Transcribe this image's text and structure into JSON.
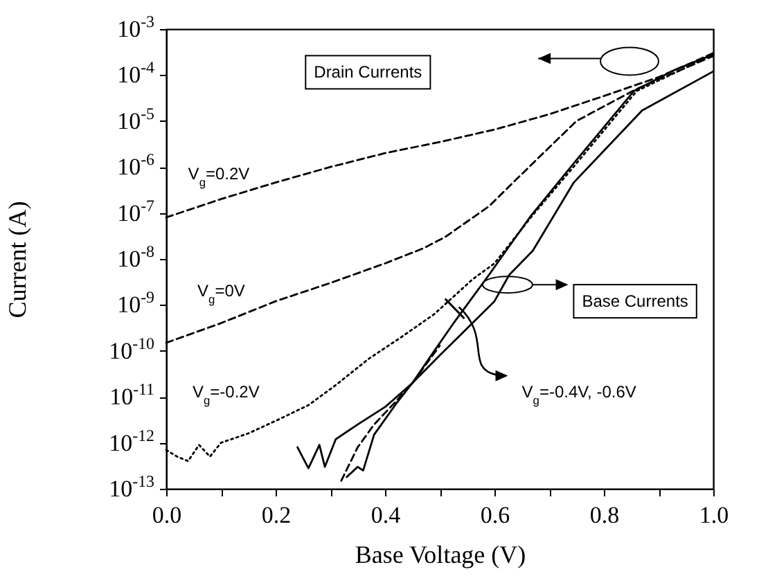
{
  "chart_data": {
    "type": "line",
    "xlabel": "Base Voltage (V)",
    "ylabel": "Current (A)",
    "xlim": [
      0,
      1
    ],
    "xticks": [
      {
        "value": 0,
        "label": "0.0"
      },
      {
        "value": 0.1,
        "label": null
      },
      {
        "value": 0.2,
        "label": "0.2"
      },
      {
        "value": 0.3,
        "label": null
      },
      {
        "value": 0.4,
        "label": "0.4"
      },
      {
        "value": 0.5,
        "label": null
      },
      {
        "value": 0.6,
        "label": "0.6"
      },
      {
        "value": 0.7,
        "label": null
      },
      {
        "value": 0.8,
        "label": "0.8"
      },
      {
        "value": 0.9,
        "label": null
      },
      {
        "value": 1,
        "label": "1.0"
      }
    ],
    "ylim": [
      1e-13,
      0.001
    ],
    "log": true,
    "yticks": [
      {
        "value": 1e-13,
        "label": "10$^{-13}$"
      },
      {
        "value": 1e-12,
        "label": "10$^{-12}$"
      },
      {
        "value": 1e-11,
        "label": "10$^{-11}$"
      },
      {
        "value": 1e-10,
        "label": "10$^{-10}$"
      },
      {
        "value": 1e-09,
        "label": "10$^{-9}$"
      },
      {
        "value": 1e-08,
        "label": "10$^{-8}$"
      },
      {
        "value": 1e-07,
        "label": "10$^{-7}$"
      },
      {
        "value": 1e-06,
        "label": "10$^{-6}$"
      },
      {
        "value": 1e-05,
        "label": "10$^{-5}$"
      },
      {
        "value": 0.0001,
        "label": "10$^{-4}$"
      },
      {
        "value": 0.001,
        "label": "10$^{-3}$"
      }
    ],
    "series": [
      {
        "color": "#000000",
        "line_style": "dashed",
        "x": [
          0,
          0.1,
          0.2,
          0.3,
          0.4,
          0.5,
          0.6,
          0.7,
          0.8,
          0.9,
          1.0
        ],
        "values": [
          8e-08,
          2e-07,
          4.6e-07,
          1e-06,
          2e-06,
          3.5e-06,
          6.5e-06,
          1.4e-05,
          3.5e-05,
          9e-05,
          0.0003
        ]
      },
      {
        "color": "#000000",
        "line_style": "dashed",
        "x": [
          0,
          0.1,
          0.2,
          0.3,
          0.4,
          0.47,
          0.51,
          0.59,
          0.67,
          0.75,
          0.86,
          1.0
        ],
        "values": [
          1.5e-10,
          4e-10,
          1.2e-09,
          3e-09,
          8e-09,
          1.7e-08,
          3e-08,
          1.4e-07,
          1.2e-06,
          1e-05,
          5e-05,
          0.00026
        ]
      },
      {
        "color": "#000000",
        "line_style": "dotted",
        "x": [
          0,
          0.02,
          0.04,
          0.06,
          0.08,
          0.1,
          0.15,
          0.2,
          0.26,
          0.31,
          0.37,
          0.43,
          0.49,
          0.56,
          0.6,
          0.67,
          0.75,
          0.86,
          1.0
        ],
        "values": [
          7e-13,
          5e-13,
          4e-13,
          9e-13,
          5e-13,
          1e-12,
          1.6e-12,
          3e-12,
          6.6e-12,
          1.8e-11,
          6.7e-11,
          2e-10,
          6.3e-10,
          3.6e-09,
          8e-09,
          9e-08,
          1.2e-06,
          4.5e-05,
          0.00028
        ]
      },
      {
        "color": "#000000",
        "line_style": "solid",
        "x": [
          0.33,
          0.35,
          0.36,
          0.38,
          0.42,
          0.45,
          0.49,
          0.53,
          0.59,
          0.666,
          0.745,
          0.855,
          0.93,
          1.0
        ],
        "values": [
          1.8e-13,
          3e-13,
          2.5e-13,
          1.5e-12,
          7e-12,
          2e-11,
          1e-10,
          4.8e-10,
          4.5e-09,
          8.5e-08,
          1.2e-06,
          4.5e-05,
          0.00013,
          0.00028
        ]
      },
      {
        "color": "#000000",
        "line_style": "solid",
        "x": [
          0.24,
          0.26,
          0.28,
          0.29,
          0.31,
          0.35,
          0.4,
          0.45,
          0.5,
          0.545,
          0.6,
          0.627,
          0.67,
          0.745,
          0.87,
          1.0
        ],
        "values": [
          8e-13,
          2.8e-13,
          9e-13,
          3e-13,
          1.2e-12,
          2.5e-12,
          6e-12,
          2e-11,
          8e-11,
          2.7e-10,
          1.2e-09,
          4.5e-09,
          1.5e-08,
          4.6e-07,
          1.7e-05,
          0.00012
        ]
      },
      {
        "color": "#000000",
        "line_style": "dashed",
        "x": [
          0.32,
          0.35,
          0.38,
          0.42,
          0.45,
          0.5
        ],
        "values": [
          1.5e-13,
          8e-13,
          2.5e-12,
          8e-12,
          2e-11,
          1.3e-10
        ]
      }
    ],
    "annotations": [
      "Drain Currents",
      "Base Currents",
      "V$_{g}$=0.2V",
      "V$_{g}$=0V",
      "V$_{g}$=-0.2V",
      "V$_{g}$=-0.4V, -0.6V"
    ]
  }
}
